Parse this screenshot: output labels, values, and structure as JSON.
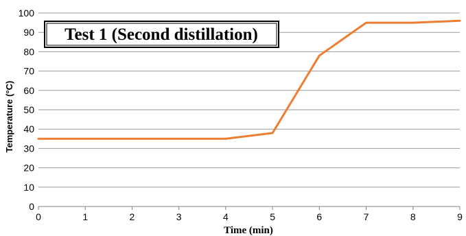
{
  "chart_data": {
    "type": "line",
    "title": "Test 1 (Second distillation)",
    "xlabel": "Time (min)",
    "ylabel": "Temperature (°C)",
    "xlim": [
      0,
      9
    ],
    "ylim": [
      0,
      100
    ],
    "x_ticks": [
      0,
      1,
      2,
      3,
      4,
      5,
      6,
      7,
      8,
      9
    ],
    "y_ticks": [
      0,
      10,
      20,
      30,
      40,
      50,
      60,
      70,
      80,
      90,
      100
    ],
    "grid": true,
    "legend": "none",
    "series": [
      {
        "color": "#ed7d31",
        "x": [
          0,
          1,
          2,
          3,
          4,
          5,
          6,
          7,
          8,
          9
        ],
        "y": [
          35,
          35,
          35,
          35,
          35,
          38,
          78,
          95,
          95,
          96
        ]
      }
    ]
  }
}
